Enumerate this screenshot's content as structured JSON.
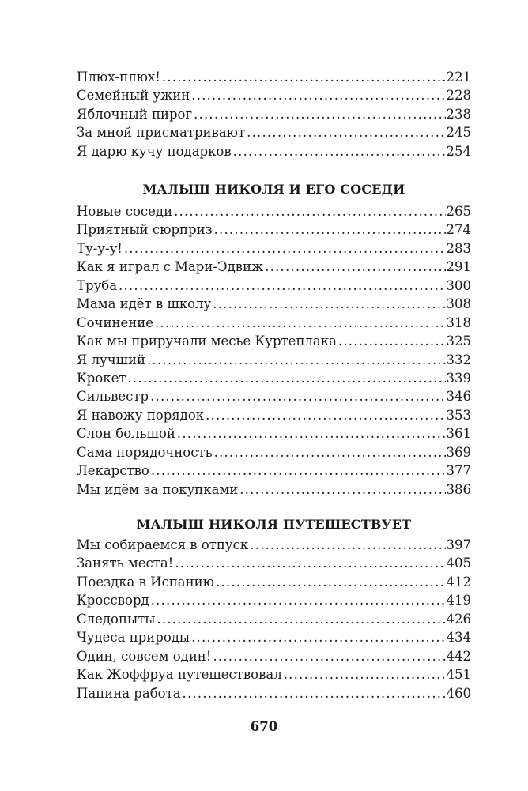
{
  "sections": [
    {
      "heading": "",
      "entries": [
        {
          "title": "Плюх-плюх!",
          "page": "221"
        },
        {
          "title": "Семейный ужин",
          "page": "228"
        },
        {
          "title": "Яблочный пирог",
          "page": "238"
        },
        {
          "title": "За мной присматривают",
          "page": "245"
        },
        {
          "title": "Я дарю кучу подарков",
          "page": "254"
        }
      ]
    },
    {
      "heading": "МАЛЫШ НИКОЛЯ И ЕГО СОСЕДИ",
      "entries": [
        {
          "title": "Новые соседи",
          "page": "265"
        },
        {
          "title": "Приятный сюрприз",
          "page": "274"
        },
        {
          "title": "Ту-у-у!",
          "page": "283"
        },
        {
          "title": "Как я играл с Мари-Эдвиж",
          "page": "291"
        },
        {
          "title": "Труба",
          "page": "300"
        },
        {
          "title": "Мама идёт в школу",
          "page": "308"
        },
        {
          "title": "Сочинение",
          "page": "318"
        },
        {
          "title": "Как мы приручали месье Куртеплака",
          "page": "325"
        },
        {
          "title": "Я лучший",
          "page": "332"
        },
        {
          "title": "Крокет",
          "page": "339"
        },
        {
          "title": "Сильвестр",
          "page": "346"
        },
        {
          "title": "Я навожу порядок",
          "page": "353"
        },
        {
          "title": "Слон большой",
          "page": "361"
        },
        {
          "title": "Сама порядочность",
          "page": "369"
        },
        {
          "title": "Лекарство",
          "page": "377"
        },
        {
          "title": "Мы идём за покупками",
          "page": "386"
        }
      ]
    },
    {
      "heading": "МАЛЫШ НИКОЛЯ ПУТЕШЕСТВУЕТ",
      "entries": [
        {
          "title": "Мы собираемся в отпуск",
          "page": "397"
        },
        {
          "title": "Занять места!",
          "page": "405"
        },
        {
          "title": "Поездка в Испанию",
          "page": "412"
        },
        {
          "title": "Кроссворд",
          "page": "419"
        },
        {
          "title": "Следопыты",
          "page": "426"
        },
        {
          "title": "Чудеса природы",
          "page": "434"
        },
        {
          "title": "Один, совсем один!",
          "page": "442"
        },
        {
          "title": "Как Жоффруа путешествовал",
          "page": "451"
        },
        {
          "title": "Папина работа",
          "page": "460"
        }
      ]
    }
  ],
  "page_number": "670"
}
